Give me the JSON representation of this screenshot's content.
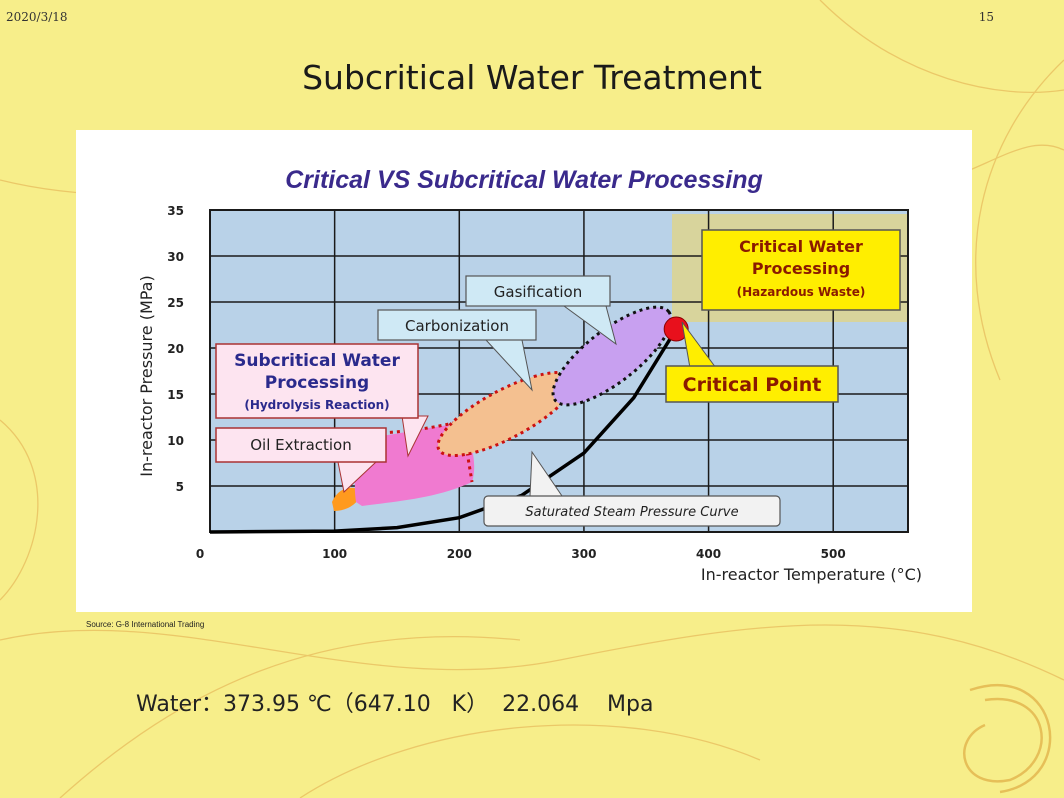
{
  "slide": {
    "date": "2020/3/18",
    "page_number": "15",
    "title": "Subcritical  Water Treatment",
    "source": "Source: G-8 International Trading",
    "footer": "Water：373.95 ℃（647.10   K）  22.064    Mpa"
  },
  "chart_data": {
    "type": "line",
    "title": "Critical VS Subcritical Water Processing",
    "xlabel": "In-reactor Temperature (°C)",
    "ylabel": "In-reactor Pressure (MPa)",
    "xlim": [
      0,
      560
    ],
    "ylim": [
      0,
      35
    ],
    "x_ticks": [
      "0",
      "100",
      "200",
      "300",
      "400",
      "500"
    ],
    "y_ticks": [
      "5",
      "10",
      "15",
      "20",
      "25",
      "30",
      "35"
    ],
    "grid": true,
    "series": [
      {
        "name": "Saturated Steam Pressure Curve",
        "x": [
          0,
          100,
          150,
          200,
          250,
          300,
          340,
          374
        ],
        "y": [
          0,
          0.1,
          0.48,
          1.55,
          3.98,
          8.58,
          14.6,
          22.06
        ]
      }
    ],
    "annotations": {
      "critical_water": [
        "Critical Water",
        "Processing",
        "(Hazardous Waste)"
      ],
      "critical_point": "Critical Point",
      "gasification": "Gasification",
      "carbonization": "Carbonization",
      "subcritical": [
        "Subcritical Water",
        "Processing",
        "(Hydrolysis Reaction)"
      ],
      "oil_extraction": "Oil Extraction",
      "steam_curve": "Saturated Steam Pressure Curve"
    },
    "critical_point": {
      "x": 374,
      "y": 22.06
    },
    "colors": {
      "plot_bg": "#b9d2e8",
      "grid": "#1a1a1a",
      "title": "#3a2a8c",
      "critical_region": "#d8d49c",
      "critical_box": "#ffee00",
      "critical_point": "#e8101c",
      "gasification": "#c8a0f0",
      "carbonization": "#f4c090",
      "subcritical": "#f07ad0",
      "oil": "#ff9a1e",
      "callout": "#cfe9f5"
    }
  }
}
